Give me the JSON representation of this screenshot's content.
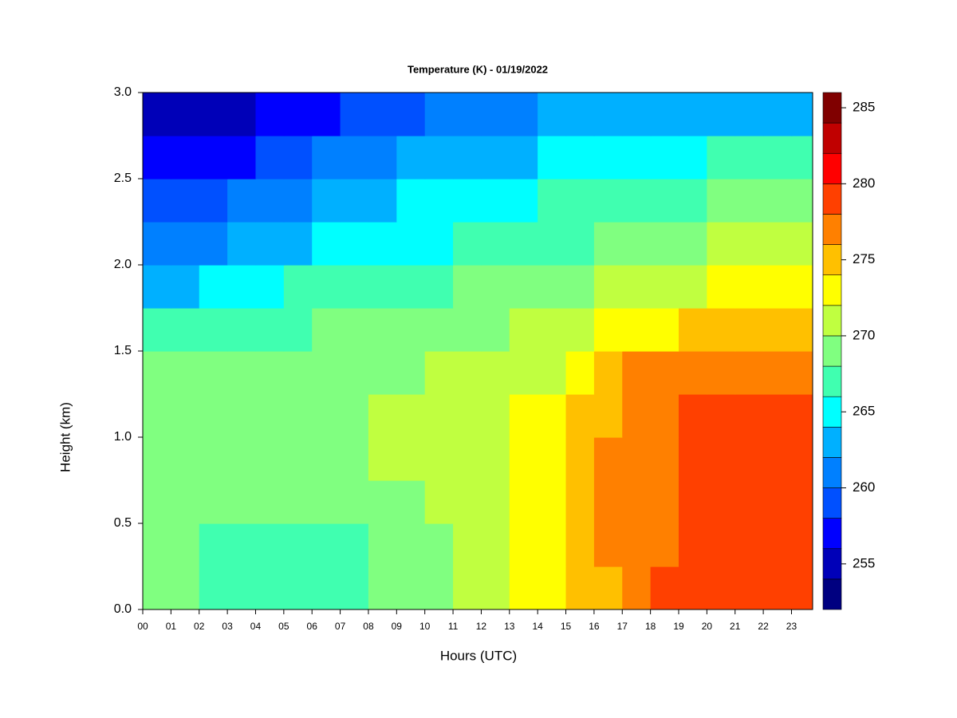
{
  "chart_data": {
    "type": "heatmap",
    "title": "Temperature (K) - 01/19/2022",
    "x_label": "Hours (UTC)",
    "y_label": "Height (km)",
    "x": [
      0.5,
      1.5,
      2.5,
      3.5,
      4.5,
      5.5,
      6.5,
      7.5,
      8.5,
      9.5,
      10.5,
      11.5,
      12.5,
      13.5,
      14.5,
      15.5,
      16.5,
      17.5,
      18.5,
      19.5,
      20.5,
      21.5,
      22.5,
      23.5
    ],
    "y": [
      0.125,
      0.375,
      0.625,
      0.875,
      1.125,
      1.375,
      1.625,
      1.875,
      2.125,
      2.375,
      2.625,
      2.875
    ],
    "z": [
      [
        268,
        268,
        267,
        267,
        267,
        267,
        267,
        267,
        268,
        268,
        269,
        270,
        271,
        272,
        273,
        274,
        274,
        276,
        278,
        278,
        279,
        279,
        279,
        279
      ],
      [
        268,
        268,
        267,
        267,
        267,
        267,
        267,
        267,
        268,
        268,
        269,
        270,
        271,
        272,
        273,
        274,
        276,
        277,
        277,
        278,
        279,
        279,
        279,
        279
      ],
      [
        269,
        269,
        268,
        268,
        268,
        268,
        268,
        268,
        269,
        269,
        270,
        270,
        271,
        272,
        273,
        275,
        276,
        277,
        277,
        278,
        279,
        279,
        279,
        279
      ],
      [
        269,
        269,
        269,
        269,
        269,
        269,
        269,
        269,
        270,
        270,
        270,
        271,
        271,
        272,
        272,
        275,
        276,
        277,
        277,
        278,
        279,
        279,
        279,
        279
      ],
      [
        269,
        269,
        269,
        269,
        269,
        269,
        269,
        269,
        270,
        270,
        270,
        271,
        271,
        272,
        272,
        274,
        275,
        277,
        277,
        278,
        279,
        279,
        279,
        279
      ],
      [
        268,
        268,
        268,
        268,
        268,
        269,
        269,
        269,
        269,
        269,
        270,
        270,
        270,
        271,
        271,
        272,
        274,
        276,
        276,
        276,
        277,
        277,
        277,
        277
      ],
      [
        266,
        266,
        267,
        267,
        267,
        267,
        268,
        268,
        268,
        268,
        268,
        269,
        269,
        270,
        270,
        271,
        272,
        273,
        273,
        274,
        274,
        274,
        274,
        274
      ],
      [
        262,
        263,
        264,
        265,
        265,
        266,
        266,
        266,
        267,
        267,
        267,
        268,
        268,
        269,
        269,
        269,
        270,
        271,
        271,
        271,
        272,
        272,
        272,
        272
      ],
      [
        260,
        260,
        261,
        262,
        262,
        263,
        264,
        264,
        265,
        265,
        265,
        266,
        266,
        267,
        267,
        267,
        268,
        269,
        269,
        269,
        270,
        270,
        270,
        270
      ],
      [
        258,
        258,
        259,
        260,
        260,
        261,
        262,
        262,
        263,
        264,
        264,
        265,
        265,
        265,
        266,
        266,
        266,
        267,
        267,
        267,
        268,
        268,
        268,
        268
      ],
      [
        256,
        256,
        257,
        257,
        258,
        258,
        260,
        260,
        261,
        262,
        262,
        263,
        263,
        263,
        264,
        264,
        264,
        265,
        265,
        265,
        266,
        266,
        266,
        266
      ],
      [
        254,
        254,
        255,
        255,
        256,
        256,
        257,
        258,
        259,
        259,
        260,
        261,
        261,
        261,
        262,
        262,
        262,
        263,
        263,
        263,
        263,
        263,
        263,
        263
      ]
    ],
    "levels": [
      252,
      254,
      256,
      258,
      260,
      262,
      264,
      266,
      268,
      270,
      272,
      274,
      276,
      278,
      280,
      282,
      284,
      286
    ],
    "colors": [
      "#000080",
      "#0000b8",
      "#0000ff",
      "#0050ff",
      "#0080ff",
      "#00b0ff",
      "#00ffff",
      "#40ffb0",
      "#80ff80",
      "#c0ff40",
      "#ffff00",
      "#ffc000",
      "#ff8000",
      "#ff4000",
      "#ff0000",
      "#c00000",
      "#800000"
    ],
    "colorbar_ticks": [
      255,
      260,
      265,
      270,
      275,
      280,
      285
    ],
    "xlim": [
      0,
      23.75
    ],
    "ylim": [
      0,
      3
    ],
    "xticks": [
      {
        "value": 0,
        "label": "00"
      },
      {
        "value": 1,
        "label": "01"
      },
      {
        "value": 2,
        "label": "02"
      },
      {
        "value": 3,
        "label": "03"
      },
      {
        "value": 4,
        "label": "04"
      },
      {
        "value": 5,
        "label": "05"
      },
      {
        "value": 6,
        "label": "06"
      },
      {
        "value": 7,
        "label": "07"
      },
      {
        "value": 8,
        "label": "08"
      },
      {
        "value": 9,
        "label": "09"
      },
      {
        "value": 10,
        "label": "10"
      },
      {
        "value": 11,
        "label": "11"
      },
      {
        "value": 12,
        "label": "12"
      },
      {
        "value": 13,
        "label": "13"
      },
      {
        "value": 14,
        "label": "14"
      },
      {
        "value": 15,
        "label": "15"
      },
      {
        "value": 16,
        "label": "16"
      },
      {
        "value": 17,
        "label": "17"
      },
      {
        "value": 18,
        "label": "18"
      },
      {
        "value": 19,
        "label": "19"
      },
      {
        "value": 20,
        "label": "20"
      },
      {
        "value": 21,
        "label": "21"
      },
      {
        "value": 22,
        "label": "22"
      },
      {
        "value": 23,
        "label": "23"
      }
    ],
    "yticks": [
      {
        "value": 0,
        "label": "0.0"
      },
      0.5,
      {
        "value": 1,
        "label": "1.0"
      },
      1.5,
      {
        "value": 2,
        "label": "2.0"
      },
      2.5,
      {
        "value": 3,
        "label": "3.0"
      }
    ]
  }
}
